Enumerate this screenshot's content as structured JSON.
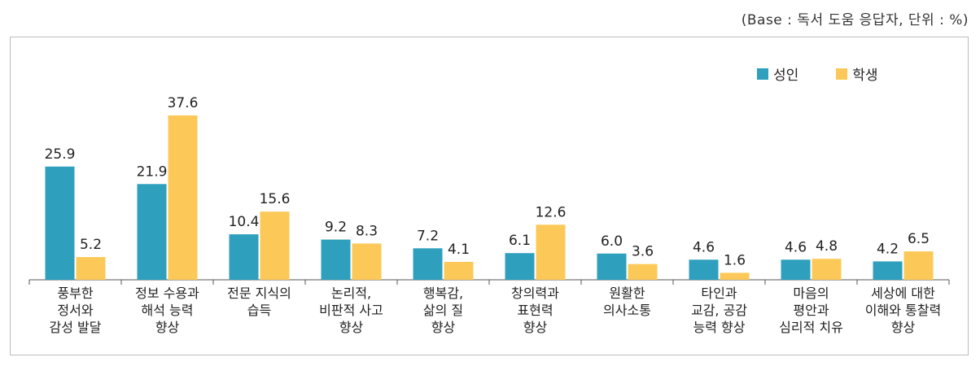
{
  "note": "(Base : 독서 도움 응답자, 단위 : %)",
  "colors": {
    "adult": "#2e9fbc",
    "student": "#fcc959",
    "axis": "#555555"
  },
  "chart_data": {
    "type": "bar",
    "categories": [
      "풍부한\n정서와\n감성 발달",
      "정보 수용과\n해석 능력\n향상",
      "전문 지식의\n습득",
      "논리적,\n비판적 사고\n향상",
      "행복감,\n삶의 질\n향상",
      "창의력과\n표현력\n향상",
      "원활한\n의사소통",
      "타인과\n교감, 공감\n능력 향상",
      "마음의\n평안과\n심리적 치유",
      "세상에 대한\n이해와 통찰력\n향상"
    ],
    "series": [
      {
        "name": "성인",
        "values": [
          25.9,
          21.9,
          10.4,
          9.2,
          7.2,
          6.1,
          6.0,
          4.6,
          4.6,
          4.2
        ],
        "labels": [
          "25.9",
          "21.9",
          "10.4",
          "9.2",
          "7.2",
          "6.1",
          "6.0",
          "4.6",
          "4.6",
          "4.2"
        ]
      },
      {
        "name": "학생",
        "values": [
          5.2,
          37.6,
          15.6,
          8.3,
          4.1,
          12.6,
          3.6,
          1.6,
          4.8,
          6.5
        ],
        "labels": [
          "5.2",
          "37.6",
          "15.6",
          "8.3",
          "4.1",
          "12.6",
          "3.6",
          "1.6",
          "4.8",
          "6.5"
        ]
      }
    ],
    "ylim": [
      0,
      40
    ],
    "legend": "top-right",
    "grid": false
  }
}
